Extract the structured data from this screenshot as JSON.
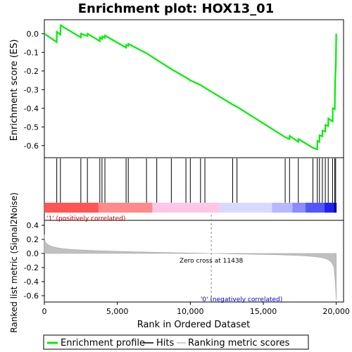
{
  "chart_data": {
    "type": "line",
    "title": "Enrichment plot: HOX13_01",
    "x_label": "Rank in Ordered Dataset",
    "x_ticks": [
      0,
      5000,
      10000,
      15000,
      20000
    ],
    "x_tick_labels": [
      "0",
      "5,000",
      "10,000",
      "15,000",
      "20,000"
    ],
    "xlim": [
      0,
      20500
    ],
    "top_panel": {
      "ylabel": "Enrichment score (ES)",
      "ylim": [
        -0.665,
        0.075
      ],
      "y_ticks": [
        0.0,
        -0.1,
        -0.2,
        -0.3,
        -0.4,
        -0.5,
        -0.6
      ],
      "y_tick_labels": [
        "0.0",
        "-0.1",
        "-0.2",
        "-0.3",
        "-0.4",
        "-0.5",
        "-0.6"
      ],
      "series": {
        "name": "Enrichment profile",
        "color": "#00ee00",
        "x": [
          0,
          850,
          860,
          1100,
          1110,
          2500,
          2510,
          2950,
          2960,
          3800,
          3810,
          3950,
          3960,
          4150,
          4160,
          5600,
          5610,
          5750,
          5760,
          7000,
          7700,
          8700,
          9700,
          10000,
          10700,
          11000,
          12900,
          13200,
          16500,
          16800,
          16810,
          17400,
          17410,
          18400,
          18700,
          18710,
          18850,
          18860,
          19050,
          19060,
          19250,
          19260,
          19450,
          19460,
          19750,
          19760,
          19900,
          19910,
          19960,
          19970,
          20000
        ],
        "y": [
          0.0,
          -0.045,
          0.01,
          -0.005,
          0.045,
          -0.02,
          0.0,
          -0.012,
          0.0,
          -0.04,
          -0.02,
          -0.028,
          -0.015,
          -0.022,
          -0.01,
          -0.075,
          -0.06,
          -0.065,
          -0.055,
          -0.105,
          -0.14,
          -0.19,
          -0.235,
          -0.25,
          -0.275,
          -0.29,
          -0.38,
          -0.392,
          -0.555,
          -0.565,
          -0.548,
          -0.58,
          -0.565,
          -0.612,
          -0.62,
          -0.575,
          -0.58,
          -0.545,
          -0.55,
          -0.52,
          -0.525,
          -0.49,
          -0.495,
          -0.455,
          -0.47,
          -0.4,
          -0.405,
          -0.3,
          -0.18,
          -0.18,
          0.0
        ]
      }
    },
    "hits": {
      "name": "Hits",
      "positions": [
        850,
        1100,
        2500,
        2950,
        3800,
        3950,
        4150,
        5600,
        5750,
        7000,
        7700,
        8700,
        9700,
        10000,
        10700,
        11000,
        12900,
        13200,
        16500,
        16800,
        17400,
        18400,
        18700,
        18850,
        19050,
        19250,
        19450,
        19750,
        19900,
        19960
      ]
    },
    "bottom_panel": {
      "ylabel": "Ranked list metric (Signal2Noise)",
      "ylim": [
        -0.69,
        0.47
      ],
      "y_ticks": [
        0.4,
        0.2,
        0.0,
        -0.2,
        -0.4,
        -0.6
      ],
      "y_tick_labels": [
        "0.4",
        "0.2",
        "0.0",
        "-0.2",
        "-0.4",
        "-0.6"
      ],
      "series": {
        "name": "Ranking metric scores",
        "color": "#c0c0c0",
        "x": [
          0,
          10,
          50,
          150,
          300,
          500,
          800,
          1200,
          2000,
          3500,
          6000,
          9000,
          11438,
          13500,
          16000,
          17500,
          18500,
          19000,
          19300,
          19500,
          19700,
          19850,
          19950,
          20000
        ],
        "y": [
          0.27,
          0.22,
          0.17,
          0.14,
          0.12,
          0.1,
          0.085,
          0.07,
          0.055,
          0.04,
          0.025,
          0.01,
          0.0,
          -0.008,
          -0.018,
          -0.03,
          -0.045,
          -0.06,
          -0.075,
          -0.095,
          -0.13,
          -0.2,
          -0.45,
          -0.66
        ]
      },
      "zero_cross_rank": 11438,
      "zero_cross_label": "Zero cross at 11438",
      "positive_label": "'1' (positively correlated)",
      "negative_label": "'0' (negatively correlated)"
    },
    "legend": {
      "placement": "bottom",
      "entries": [
        {
          "label": "Enrichment profile",
          "color": "#00ee00",
          "style": "thick-line"
        },
        {
          "label": "Hits",
          "color": "#000000",
          "style": "thin-line"
        },
        {
          "label": "Ranking metric scores",
          "color": "#c0c0c0",
          "style": "thin-line"
        }
      ]
    },
    "colors": {
      "positive_label": "#cc0000",
      "negative_label": "#0000cc",
      "zero_line": "#888888"
    }
  }
}
